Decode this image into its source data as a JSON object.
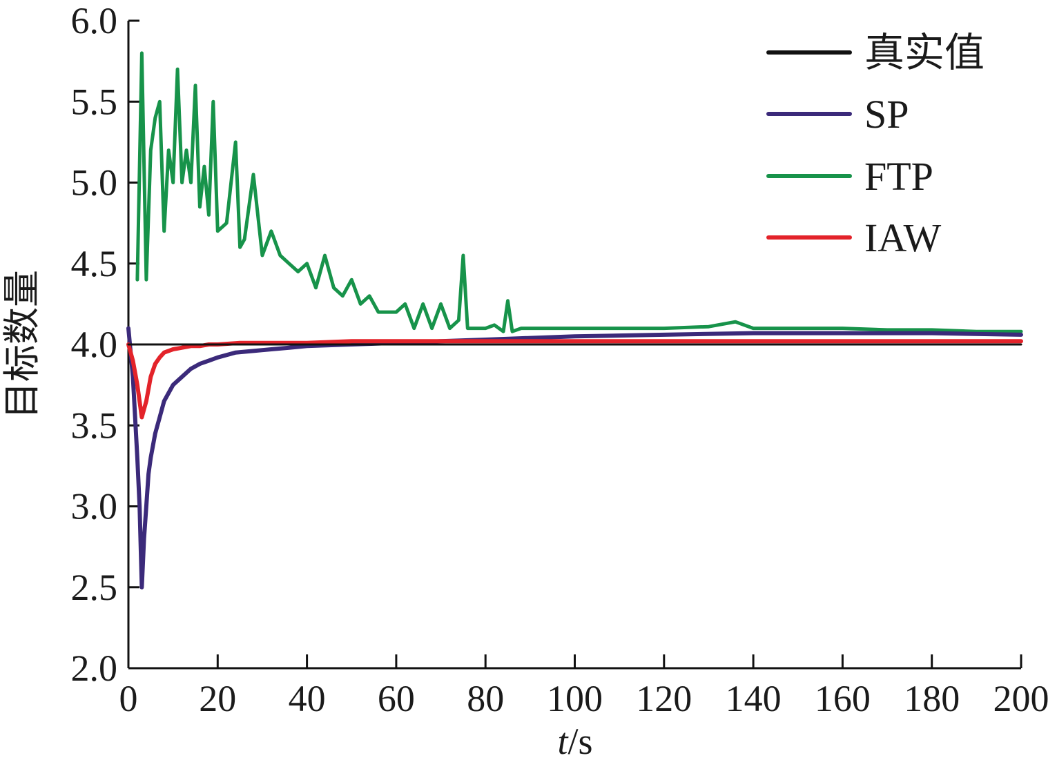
{
  "chart_data": {
    "type": "line",
    "title": "",
    "xlabel_italic": "t",
    "xlabel_rest": "/s",
    "ylabel": "目标数量",
    "xlim": [
      0,
      200
    ],
    "ylim": [
      2.0,
      6.0
    ],
    "x_ticks": [
      "0",
      "20",
      "40",
      "60",
      "80",
      "100",
      "120",
      "140",
      "160",
      "180",
      "200"
    ],
    "y_ticks": [
      "2.0",
      "2.5",
      "3.0",
      "3.5",
      "4.0",
      "4.5",
      "5.0",
      "5.5",
      "6.0"
    ],
    "grid": false,
    "legend_position": "top-right",
    "series": [
      {
        "name": "真实值",
        "color": "#111111",
        "x": [
          0,
          200
        ],
        "y": [
          4.0,
          4.0
        ]
      },
      {
        "name": "SP",
        "color": "#3b2a7a",
        "x": [
          0,
          1,
          2,
          2.5,
          3,
          3.5,
          4,
          4.5,
          5,
          6,
          7,
          8,
          9,
          10,
          12,
          14,
          16,
          18,
          20,
          24,
          28,
          32,
          36,
          40,
          50,
          60,
          70,
          80,
          90,
          100,
          120,
          140,
          160,
          180,
          200
        ],
        "y": [
          4.1,
          3.8,
          3.3,
          3.0,
          2.5,
          2.8,
          3.0,
          3.2,
          3.3,
          3.45,
          3.55,
          3.65,
          3.7,
          3.75,
          3.8,
          3.85,
          3.88,
          3.9,
          3.92,
          3.95,
          3.96,
          3.97,
          3.98,
          3.99,
          4.0,
          4.01,
          4.02,
          4.03,
          4.04,
          4.05,
          4.06,
          4.07,
          4.07,
          4.07,
          4.06
        ]
      },
      {
        "name": "FTP",
        "color": "#17934a",
        "x": [
          2,
          3,
          4,
          5,
          6,
          7,
          8,
          9,
          10,
          11,
          12,
          13,
          14,
          15,
          16,
          17,
          18,
          19,
          20,
          22,
          24,
          25,
          26,
          28,
          30,
          32,
          34,
          36,
          38,
          40,
          42,
          44,
          46,
          48,
          50,
          52,
          54,
          56,
          58,
          60,
          62,
          64,
          66,
          68,
          70,
          72,
          74,
          75,
          76,
          78,
          80,
          82,
          84,
          85,
          86,
          88,
          90,
          95,
          100,
          110,
          120,
          130,
          136,
          140,
          150,
          160,
          170,
          180,
          190,
          200
        ],
        "y": [
          4.4,
          5.8,
          4.4,
          5.2,
          5.4,
          5.5,
          4.7,
          5.2,
          5.0,
          5.7,
          5.0,
          5.2,
          5.0,
          5.6,
          4.85,
          5.1,
          4.8,
          5.5,
          4.7,
          4.75,
          5.25,
          4.6,
          4.65,
          5.05,
          4.55,
          4.7,
          4.55,
          4.5,
          4.45,
          4.5,
          4.35,
          4.55,
          4.35,
          4.3,
          4.4,
          4.25,
          4.3,
          4.2,
          4.2,
          4.2,
          4.25,
          4.1,
          4.25,
          4.1,
          4.25,
          4.1,
          4.15,
          4.55,
          4.1,
          4.1,
          4.1,
          4.12,
          4.08,
          4.27,
          4.08,
          4.1,
          4.1,
          4.1,
          4.1,
          4.1,
          4.1,
          4.11,
          4.14,
          4.1,
          4.1,
          4.1,
          4.09,
          4.09,
          4.08,
          4.08
        ]
      },
      {
        "name": "IAW",
        "color": "#e3232a",
        "x": [
          0,
          1,
          2,
          3,
          3.5,
          4,
          5,
          6,
          7,
          8,
          10,
          12,
          14,
          16,
          18,
          20,
          25,
          30,
          40,
          50,
          60,
          80,
          100,
          120,
          140,
          160,
          180,
          200
        ],
        "y": [
          4.0,
          3.9,
          3.75,
          3.55,
          3.6,
          3.65,
          3.8,
          3.88,
          3.92,
          3.95,
          3.97,
          3.98,
          3.99,
          3.99,
          4.0,
          4.0,
          4.01,
          4.01,
          4.01,
          4.02,
          4.02,
          4.02,
          4.02,
          4.02,
          4.02,
          4.02,
          4.02,
          4.02
        ]
      }
    ]
  }
}
